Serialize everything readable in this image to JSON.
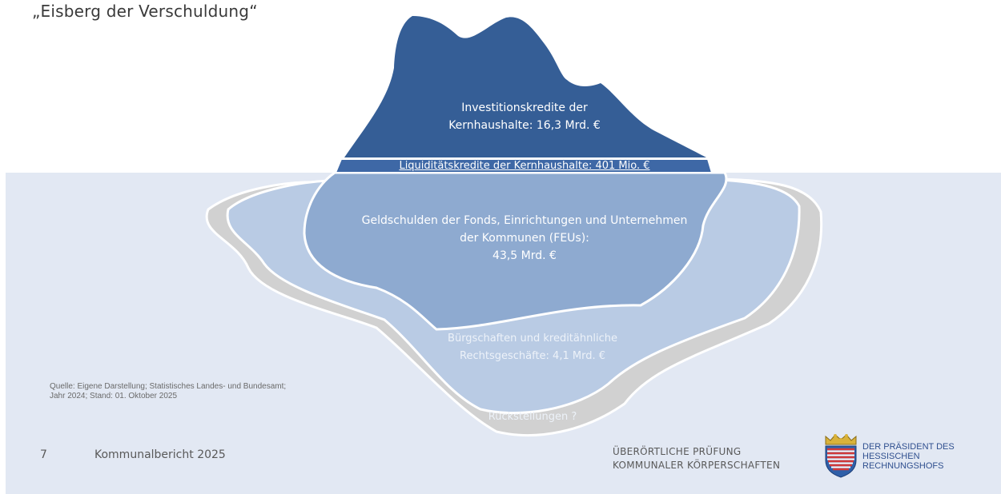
{
  "slide": {
    "title": "„Eisberg der Verschuldung“"
  },
  "iceberg": {
    "tip_label_line1": "Investitionskredite der",
    "tip_label_line2": "Kernhaushalte: 16,3 Mrd. €",
    "band_label": "Liquiditätskredite der Kernhaushalte: 401 Mio. €",
    "feu_label_line1": "Geldschulden der Fonds, Einrichtungen und Unternehmen",
    "feu_label_line2": "der Kommunen (FEUs):",
    "feu_label_line3": "43,5 Mrd. €",
    "guarantee_label_line1": "Bürgschaften und kreditähnliche",
    "guarantee_label_line2": "Rechtsgeschäfte: 4,1 Mrd. €",
    "provision_label": "Rückstellungen ?"
  },
  "source": {
    "line1": "Quelle: Eigene Darstellung; Statistisches Landes- und Bundesamt;",
    "line2": "Jahr 2024; Stand: 01. Oktober 2025"
  },
  "footer": {
    "page_number": "7",
    "report_title": "Kommunalbericht 2025",
    "org_line1": "ÜBERÖRTLICHE PRÜFUNG",
    "org_line2": "KOMMUNALER KÖRPERSCHAFTEN",
    "logo_line1": "DER PRÄSIDENT DES",
    "logo_line2": "HESSISCHEN",
    "logo_line3": "RECHNUNGSHOFS"
  },
  "colors": {
    "water": "#e2e8f3",
    "tip": "#355e96",
    "feu": "#8eaad0",
    "guarantee": "#b9cbe4",
    "provisions": "#d1d1d1",
    "logo_text": "#2f4f8f"
  },
  "icons": {
    "logo": "hessen-coat-of-arms-icon"
  }
}
